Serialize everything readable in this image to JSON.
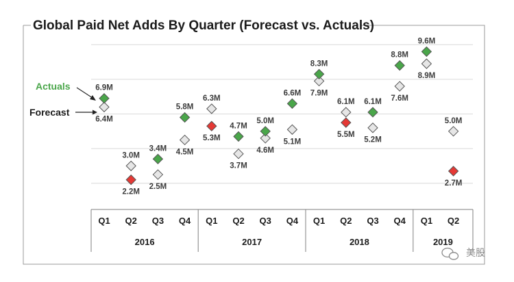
{
  "chart_data": {
    "type": "scatter",
    "title": "Global Paid Net Adds By Quarter (Forecast vs. Actuals)",
    "years": [
      {
        "label": "2016",
        "quarters": 4
      },
      {
        "label": "2017",
        "quarters": 4
      },
      {
        "label": "2018",
        "quarters": 4
      },
      {
        "label": "2019",
        "quarters": 2
      }
    ],
    "categories": [
      "Q1",
      "Q2",
      "Q3",
      "Q4",
      "Q1",
      "Q2",
      "Q3",
      "Q4",
      "Q1",
      "Q2",
      "Q3",
      "Q4",
      "Q1",
      "Q2"
    ],
    "ylim": [
      0,
      12
    ],
    "grid": true,
    "colors": {
      "actual_beat": "#4aa64a",
      "actual_miss": "#e53935",
      "forecast": "#e6e6e6",
      "marker_stroke": "#555555",
      "legend_actuals": "#4aa64a"
    },
    "series": [
      {
        "name": "Actuals",
        "values": [
          6.9,
          2.2,
          3.4,
          5.8,
          5.3,
          4.7,
          5.0,
          6.6,
          8.3,
          5.5,
          6.1,
          8.8,
          9.6,
          2.7
        ],
        "labels": [
          "6.9M",
          "2.2M",
          "3.4M",
          "5.8M",
          "5.3M",
          "4.7M",
          "5.0M",
          "6.6M",
          "8.3M",
          "5.5M",
          "6.1M",
          "8.8M",
          "9.6M",
          "2.7M"
        ]
      },
      {
        "name": "Forecast",
        "values": [
          6.4,
          3.0,
          2.5,
          4.5,
          6.3,
          3.7,
          4.6,
          5.1,
          7.9,
          6.1,
          5.2,
          7.6,
          8.9,
          5.0
        ],
        "labels": [
          "6.4M",
          "3.0M",
          "2.5M",
          "4.5M",
          "6.3M",
          "3.7M",
          "4.6M",
          "5.1M",
          "7.9M",
          "6.1M",
          "5.2M",
          "7.6M",
          "8.9M",
          "5.0M"
        ]
      }
    ],
    "legend": {
      "actuals": "Actuals",
      "forecast": "Forecast",
      "placement": "left"
    }
  },
  "watermark": {
    "text": "美股",
    "icon": "wechat-icon"
  }
}
